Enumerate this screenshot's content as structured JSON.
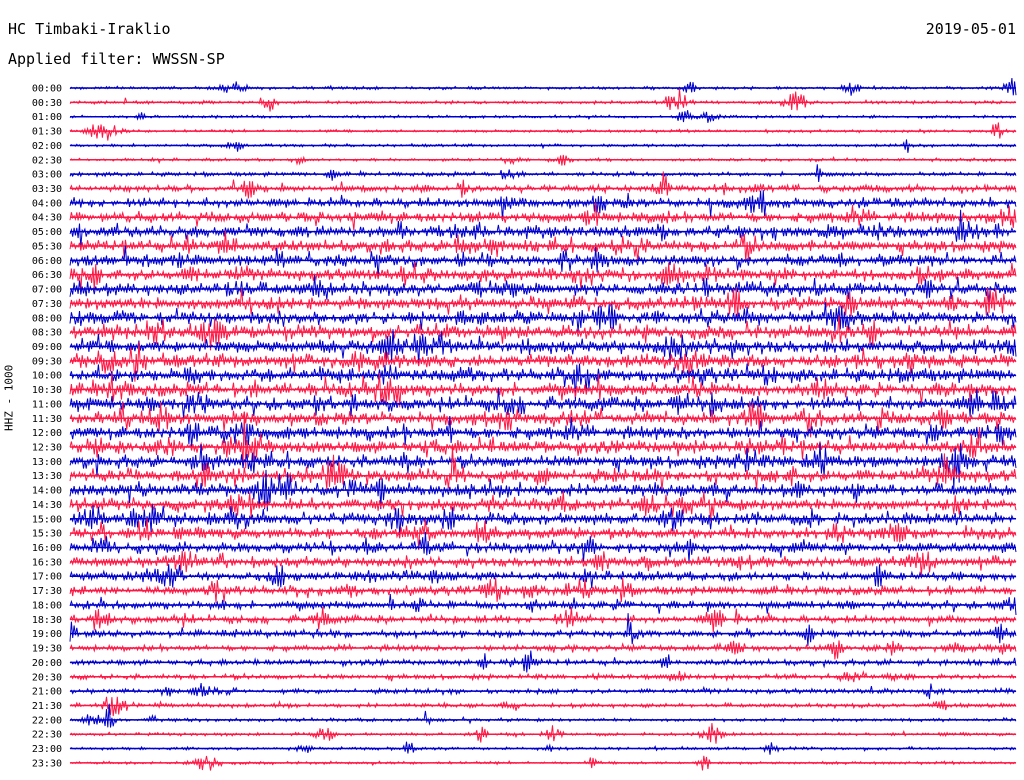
{
  "header": {
    "station": "HC Timbaki-Iraklio",
    "date": "2019-05-01",
    "filter_label": "Applied filter: WWSSN-SP"
  },
  "chart_data": {
    "type": "line",
    "ylabel": "HHZ - 1000",
    "colors": [
      "#0000cc",
      "#ff1744"
    ],
    "x_unit": "minutes",
    "xlim": [
      0,
      30
    ],
    "rows": [
      {
        "label": "00:00",
        "activity": 0.1
      },
      {
        "label": "00:30",
        "activity": 0.1
      },
      {
        "label": "01:00",
        "activity": 0.08
      },
      {
        "label": "01:30",
        "activity": 0.08
      },
      {
        "label": "02:00",
        "activity": 0.09
      },
      {
        "label": "02:30",
        "activity": 0.1
      },
      {
        "label": "03:00",
        "activity": 0.18
      },
      {
        "label": "03:30",
        "activity": 0.35
      },
      {
        "label": "04:00",
        "activity": 0.55
      },
      {
        "label": "04:30",
        "activity": 0.65
      },
      {
        "label": "05:00",
        "activity": 0.7
      },
      {
        "label": "05:30",
        "activity": 0.7
      },
      {
        "label": "06:00",
        "activity": 0.7
      },
      {
        "label": "06:30",
        "activity": 0.72
      },
      {
        "label": "07:00",
        "activity": 0.75
      },
      {
        "label": "07:30",
        "activity": 0.78
      },
      {
        "label": "08:00",
        "activity": 0.8
      },
      {
        "label": "08:30",
        "activity": 0.82
      },
      {
        "label": "09:00",
        "activity": 0.82
      },
      {
        "label": "09:30",
        "activity": 0.85
      },
      {
        "label": "10:00",
        "activity": 0.85
      },
      {
        "label": "10:30",
        "activity": 0.85
      },
      {
        "label": "11:00",
        "activity": 0.82
      },
      {
        "label": "11:30",
        "activity": 0.82
      },
      {
        "label": "12:00",
        "activity": 0.82
      },
      {
        "label": "12:30",
        "activity": 0.8
      },
      {
        "label": "13:00",
        "activity": 0.8
      },
      {
        "label": "13:30",
        "activity": 0.8
      },
      {
        "label": "14:00",
        "activity": 0.75
      },
      {
        "label": "14:30",
        "activity": 0.72
      },
      {
        "label": "15:00",
        "activity": 0.7
      },
      {
        "label": "15:30",
        "activity": 0.68
      },
      {
        "label": "16:00",
        "activity": 0.62
      },
      {
        "label": "16:30",
        "activity": 0.58
      },
      {
        "label": "17:00",
        "activity": 0.55
      },
      {
        "label": "17:30",
        "activity": 0.52
      },
      {
        "label": "18:00",
        "activity": 0.45
      },
      {
        "label": "18:30",
        "activity": 0.4
      },
      {
        "label": "19:00",
        "activity": 0.38
      },
      {
        "label": "19:30",
        "activity": 0.32
      },
      {
        "label": "20:00",
        "activity": 0.28
      },
      {
        "label": "20:30",
        "activity": 0.25
      },
      {
        "label": "21:00",
        "activity": 0.22
      },
      {
        "label": "21:30",
        "activity": 0.18
      },
      {
        "label": "22:00",
        "activity": 0.12
      },
      {
        "label": "22:30",
        "activity": 0.1
      },
      {
        "label": "23:00",
        "activity": 0.1
      },
      {
        "label": "23:30",
        "activity": 0.08
      }
    ]
  }
}
